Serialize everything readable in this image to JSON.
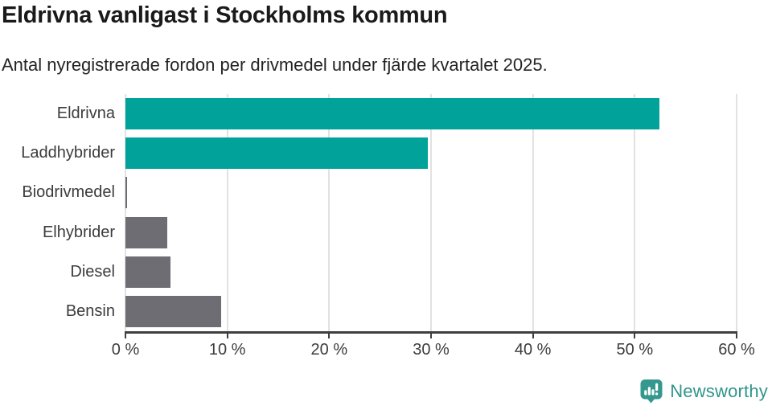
{
  "chart": {
    "title": "Eldrivna vanligast i Stockholms kommun",
    "subtitle": "Antal nyregistrerade fordon per drivmedel under fjärde kvartalet 2025."
  },
  "chart_data": {
    "type": "bar",
    "orientation": "horizontal",
    "title": "Eldrivna vanligast i Stockholms kommun",
    "subtitle": "Antal nyregistrerade fordon per drivmedel under fjärde kvartalet 2025.",
    "categories": [
      "Eldrivna",
      "Laddhybrider",
      "Biodrivmedel",
      "Elhybrider",
      "Diesel",
      "Bensin"
    ],
    "values": [
      52.4,
      29.7,
      0.15,
      4.1,
      4.4,
      9.4
    ],
    "unit": "%",
    "xlim": [
      0,
      60
    ],
    "x_ticks": [
      0,
      10,
      20,
      30,
      40,
      50,
      60
    ],
    "x_tick_labels": [
      "0 %",
      "10 %",
      "20 %",
      "30 %",
      "40 %",
      "50 %",
      "60 %"
    ],
    "grid": "vertical-gridlines-on",
    "legend": "none",
    "bar_colors": [
      "#00a29a",
      "#00a29a",
      "#6d6d73",
      "#6d6d73",
      "#6d6d73",
      "#6d6d73"
    ],
    "colors": {
      "highlight": "#00a29a",
      "default": "#6d6d73",
      "gridline": "#e2e2e2",
      "axis": "#3f3f3f"
    }
  },
  "footer": {
    "brand": "Newsworthy",
    "brand_color": "#2f958b",
    "logo_icon": "newsworthy-speech-bubble-bar-chart-icon"
  }
}
